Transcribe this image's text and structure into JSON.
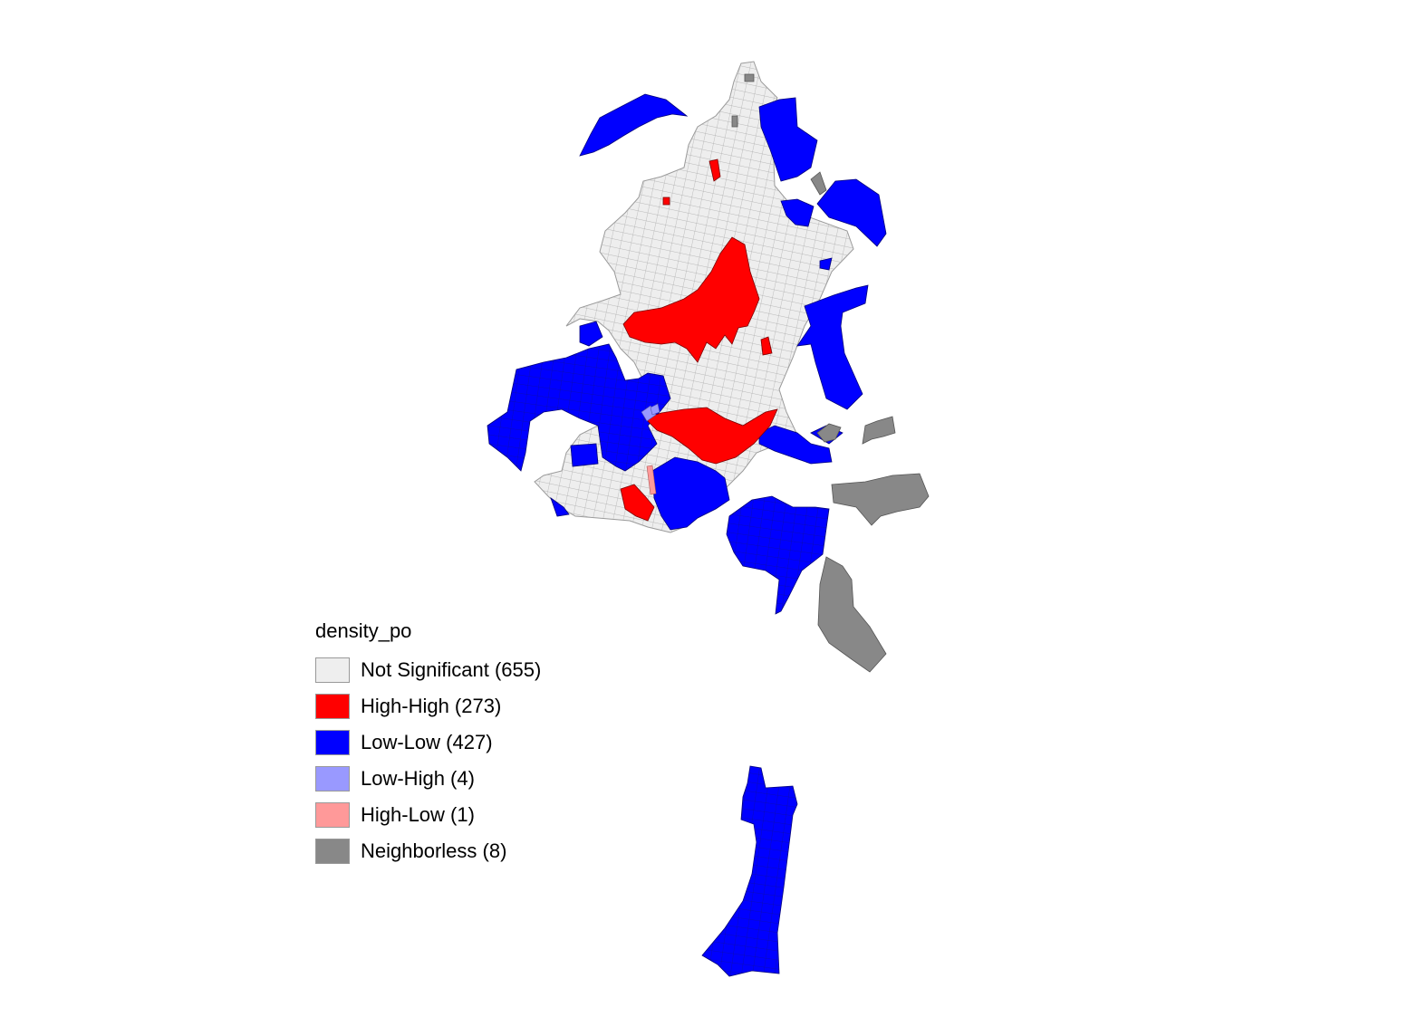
{
  "legend": {
    "title": "density_po",
    "items": [
      {
        "label": "Not Significant (655)",
        "color": "#eeeeee",
        "category": "not-significant"
      },
      {
        "label": "High-High (273)",
        "color": "#ff0000",
        "category": "high-high"
      },
      {
        "label": "Low-Low (427)",
        "color": "#0000ff",
        "category": "low-low"
      },
      {
        "label": "Low-High (4)",
        "color": "#9999ff",
        "category": "low-high"
      },
      {
        "label": "High-Low (1)",
        "color": "#ff9999",
        "category": "high-low"
      },
      {
        "label": "Neighborless (8)",
        "color": "#888888",
        "category": "neighborless"
      }
    ]
  }
}
